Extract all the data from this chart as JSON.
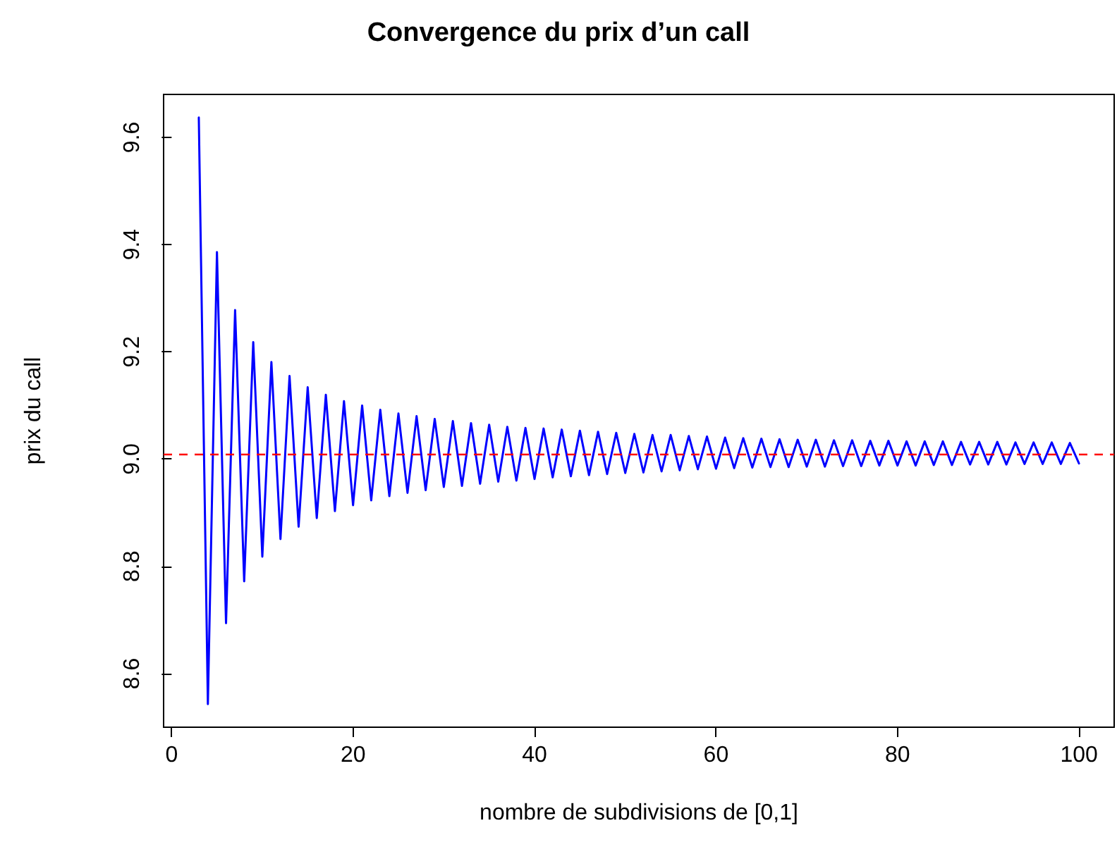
{
  "chart_data": {
    "type": "line",
    "title": "Convergence du prix d’un call",
    "xlabel": "nombre de subdivisions de [0,1]",
    "ylabel": "prix du call",
    "x": [
      3,
      4,
      5,
      6,
      7,
      8,
      9,
      10,
      11,
      12,
      13,
      14,
      15,
      16,
      17,
      18,
      19,
      20,
      21,
      22,
      23,
      24,
      25,
      26,
      27,
      28,
      29,
      30,
      31,
      32,
      33,
      34,
      35,
      36,
      37,
      38,
      39,
      40,
      41,
      42,
      43,
      44,
      45,
      46,
      47,
      48,
      49,
      50,
      51,
      52,
      53,
      54,
      55,
      56,
      57,
      58,
      59,
      60,
      61,
      62,
      63,
      64,
      65,
      66,
      67,
      68,
      69,
      70,
      71,
      72,
      73,
      74,
      75,
      76,
      77,
      78,
      79,
      80,
      81,
      82,
      83,
      84,
      85,
      86,
      87,
      88,
      89,
      90,
      91,
      92,
      93,
      94,
      95,
      96,
      97,
      98,
      99,
      100
    ],
    "series": [
      {
        "color": "#0000ff",
        "values": [
          9.637,
          8.543,
          9.386,
          8.694,
          9.278,
          8.772,
          9.218,
          8.818,
          9.181,
          8.851,
          9.155,
          8.874,
          9.134,
          8.89,
          9.12,
          8.903,
          9.108,
          8.914,
          9.1,
          8.923,
          9.092,
          8.931,
          9.085,
          8.937,
          9.08,
          8.942,
          9.075,
          8.948,
          9.071,
          8.95,
          9.067,
          8.954,
          9.064,
          8.958,
          9.06,
          8.96,
          9.058,
          8.963,
          9.057,
          8.966,
          9.055,
          8.968,
          9.053,
          8.97,
          9.051,
          8.972,
          9.049,
          8.974,
          9.047,
          8.975,
          9.045,
          8.977,
          9.045,
          8.979,
          9.043,
          8.981,
          9.042,
          8.982,
          9.04,
          8.983,
          9.039,
          8.984,
          9.038,
          8.985,
          9.037,
          8.985,
          9.036,
          8.986,
          9.036,
          8.986,
          9.035,
          8.987,
          9.035,
          8.987,
          9.034,
          8.988,
          9.034,
          8.988,
          9.033,
          8.988,
          9.033,
          8.989,
          9.033,
          8.989,
          9.032,
          8.99,
          9.032,
          8.99,
          9.032,
          8.99,
          9.031,
          8.991,
          9.031,
          8.991,
          9.031,
          8.991,
          9.03,
          8.992
        ]
      }
    ],
    "xlim": [
      -0.88,
      103.88
    ],
    "xticks": [
      0,
      20,
      40,
      60,
      80,
      100
    ],
    "ylim": [
      8.5,
      9.68
    ],
    "yticks": [
      8.6,
      8.8,
      {
        "value": 9,
        "label": "9.0"
      },
      9.2,
      9.4,
      9.6
    ],
    "ref_lines": [
      {
        "axis": "y",
        "value": 9.012,
        "color": "#ff0000",
        "line_style": "dashed"
      }
    ],
    "marker": "none",
    "line_style": "solid"
  }
}
